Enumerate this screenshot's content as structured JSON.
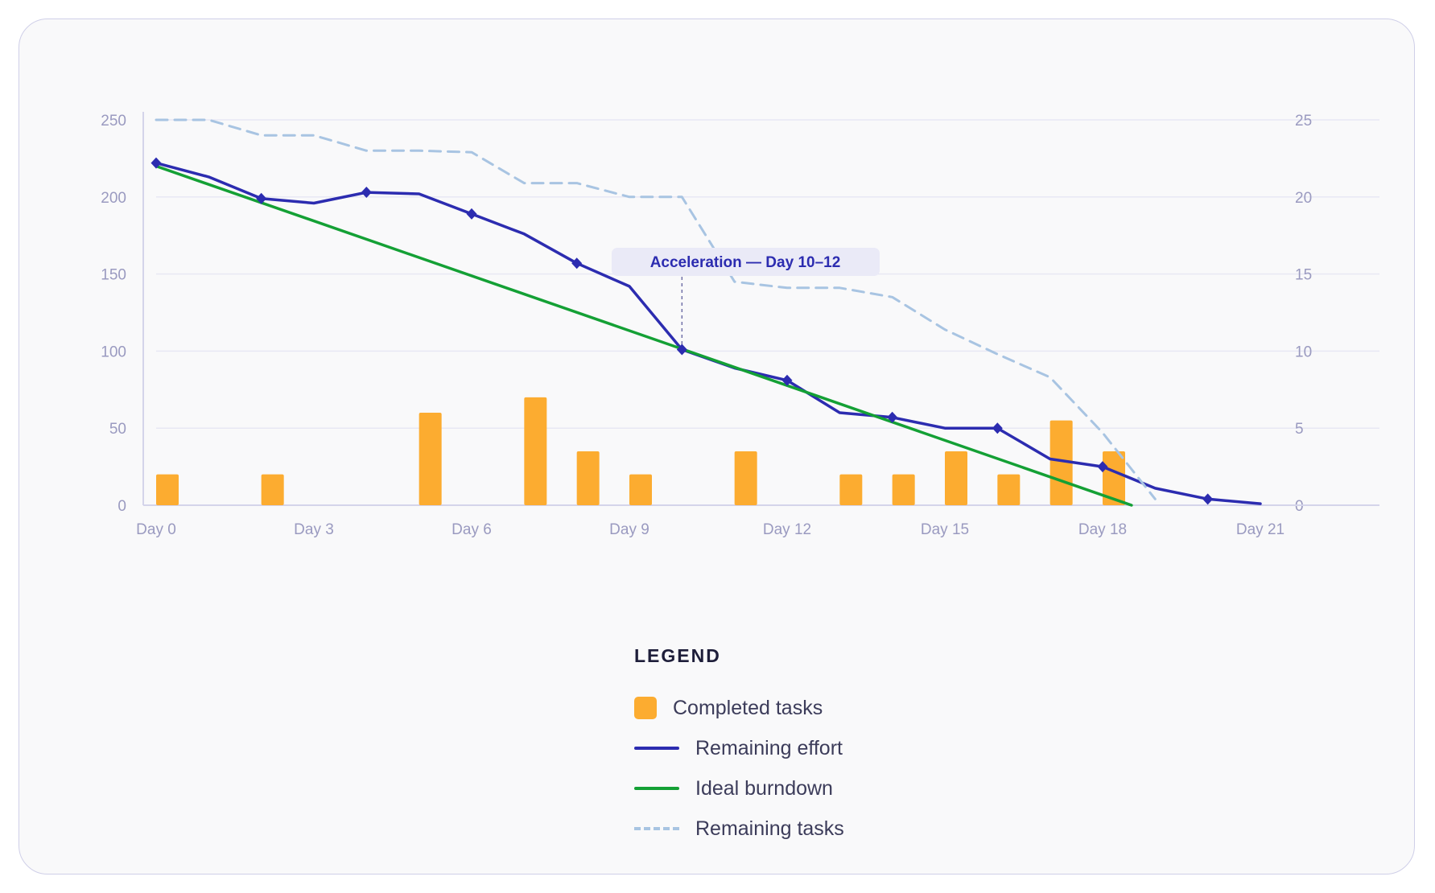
{
  "chart_data": {
    "type": "bar+line",
    "x": [
      0,
      1,
      2,
      3,
      4,
      5,
      6,
      7,
      8,
      9,
      10,
      11,
      12,
      13,
      14,
      15,
      16,
      17,
      18,
      19,
      20,
      21
    ],
    "x_tick_labels": [
      "Day 0",
      "Day 3",
      "Day 6",
      "Day 9",
      "Day 12",
      "Day 15",
      "Day 18",
      "Day 21"
    ],
    "x_tick_values": [
      0,
      3,
      6,
      9,
      12,
      15,
      18,
      21
    ],
    "xlim": [
      0,
      21
    ],
    "left_axis": {
      "ticks": [
        0,
        50,
        100,
        150,
        200,
        250
      ],
      "ylim": [
        0,
        250
      ]
    },
    "right_axis": {
      "ticks": [
        0,
        5,
        10,
        15,
        20,
        25
      ],
      "ylim": [
        0,
        25
      ]
    },
    "grid": true,
    "legend_position": "bottom-center",
    "series": [
      {
        "name": "Completed tasks",
        "kind": "bar",
        "axis": "right",
        "color": "#fcac30",
        "values": [
          2,
          0,
          2,
          0,
          0,
          6,
          0,
          7,
          3.5,
          2,
          0,
          3.5,
          0,
          2,
          2,
          3.5,
          2,
          5.5,
          3.5,
          null,
          null,
          null
        ]
      },
      {
        "name": "Remaining effort",
        "kind": "line",
        "axis": "left",
        "color": "#2c2cb0",
        "markers": true,
        "values": [
          222,
          213,
          199,
          196,
          203,
          202,
          189,
          176,
          157,
          142,
          101,
          89,
          81,
          60,
          57,
          50,
          50,
          30,
          25,
          11,
          4,
          1
        ],
        "marker_indices": [
          0,
          2,
          4,
          6,
          8,
          10,
          12,
          14,
          16,
          18,
          20
        ]
      },
      {
        "name": "Ideal burndown",
        "kind": "line",
        "axis": "left",
        "color": "#14a035",
        "x": [
          0,
          18.55
        ],
        "values": [
          220,
          0
        ]
      },
      {
        "name": "Remaining tasks",
        "kind": "line",
        "axis": "right",
        "color": "#a8c4e2",
        "dashed": true,
        "values": [
          25,
          25,
          24,
          24,
          23,
          23,
          22.9,
          20.9,
          20.9,
          20,
          20,
          14.5,
          14.1,
          14.1,
          13.5,
          11.4,
          9.8,
          8.3,
          4.7,
          0.4,
          null,
          null
        ]
      }
    ],
    "annotation": {
      "text": "Acceleration — Day 10–12",
      "x": 10,
      "y": 101
    }
  },
  "legend": {
    "title": "LEGEND",
    "items": [
      {
        "label": "Completed tasks",
        "style": "box",
        "color": "#fcac30"
      },
      {
        "label": "Remaining effort",
        "style": "line",
        "color": "#2c2cb0"
      },
      {
        "label": "Ideal burndown",
        "style": "line",
        "color": "#14a035"
      },
      {
        "label": "Remaining tasks",
        "style": "dash",
        "color": "#a8c4e2"
      }
    ]
  }
}
